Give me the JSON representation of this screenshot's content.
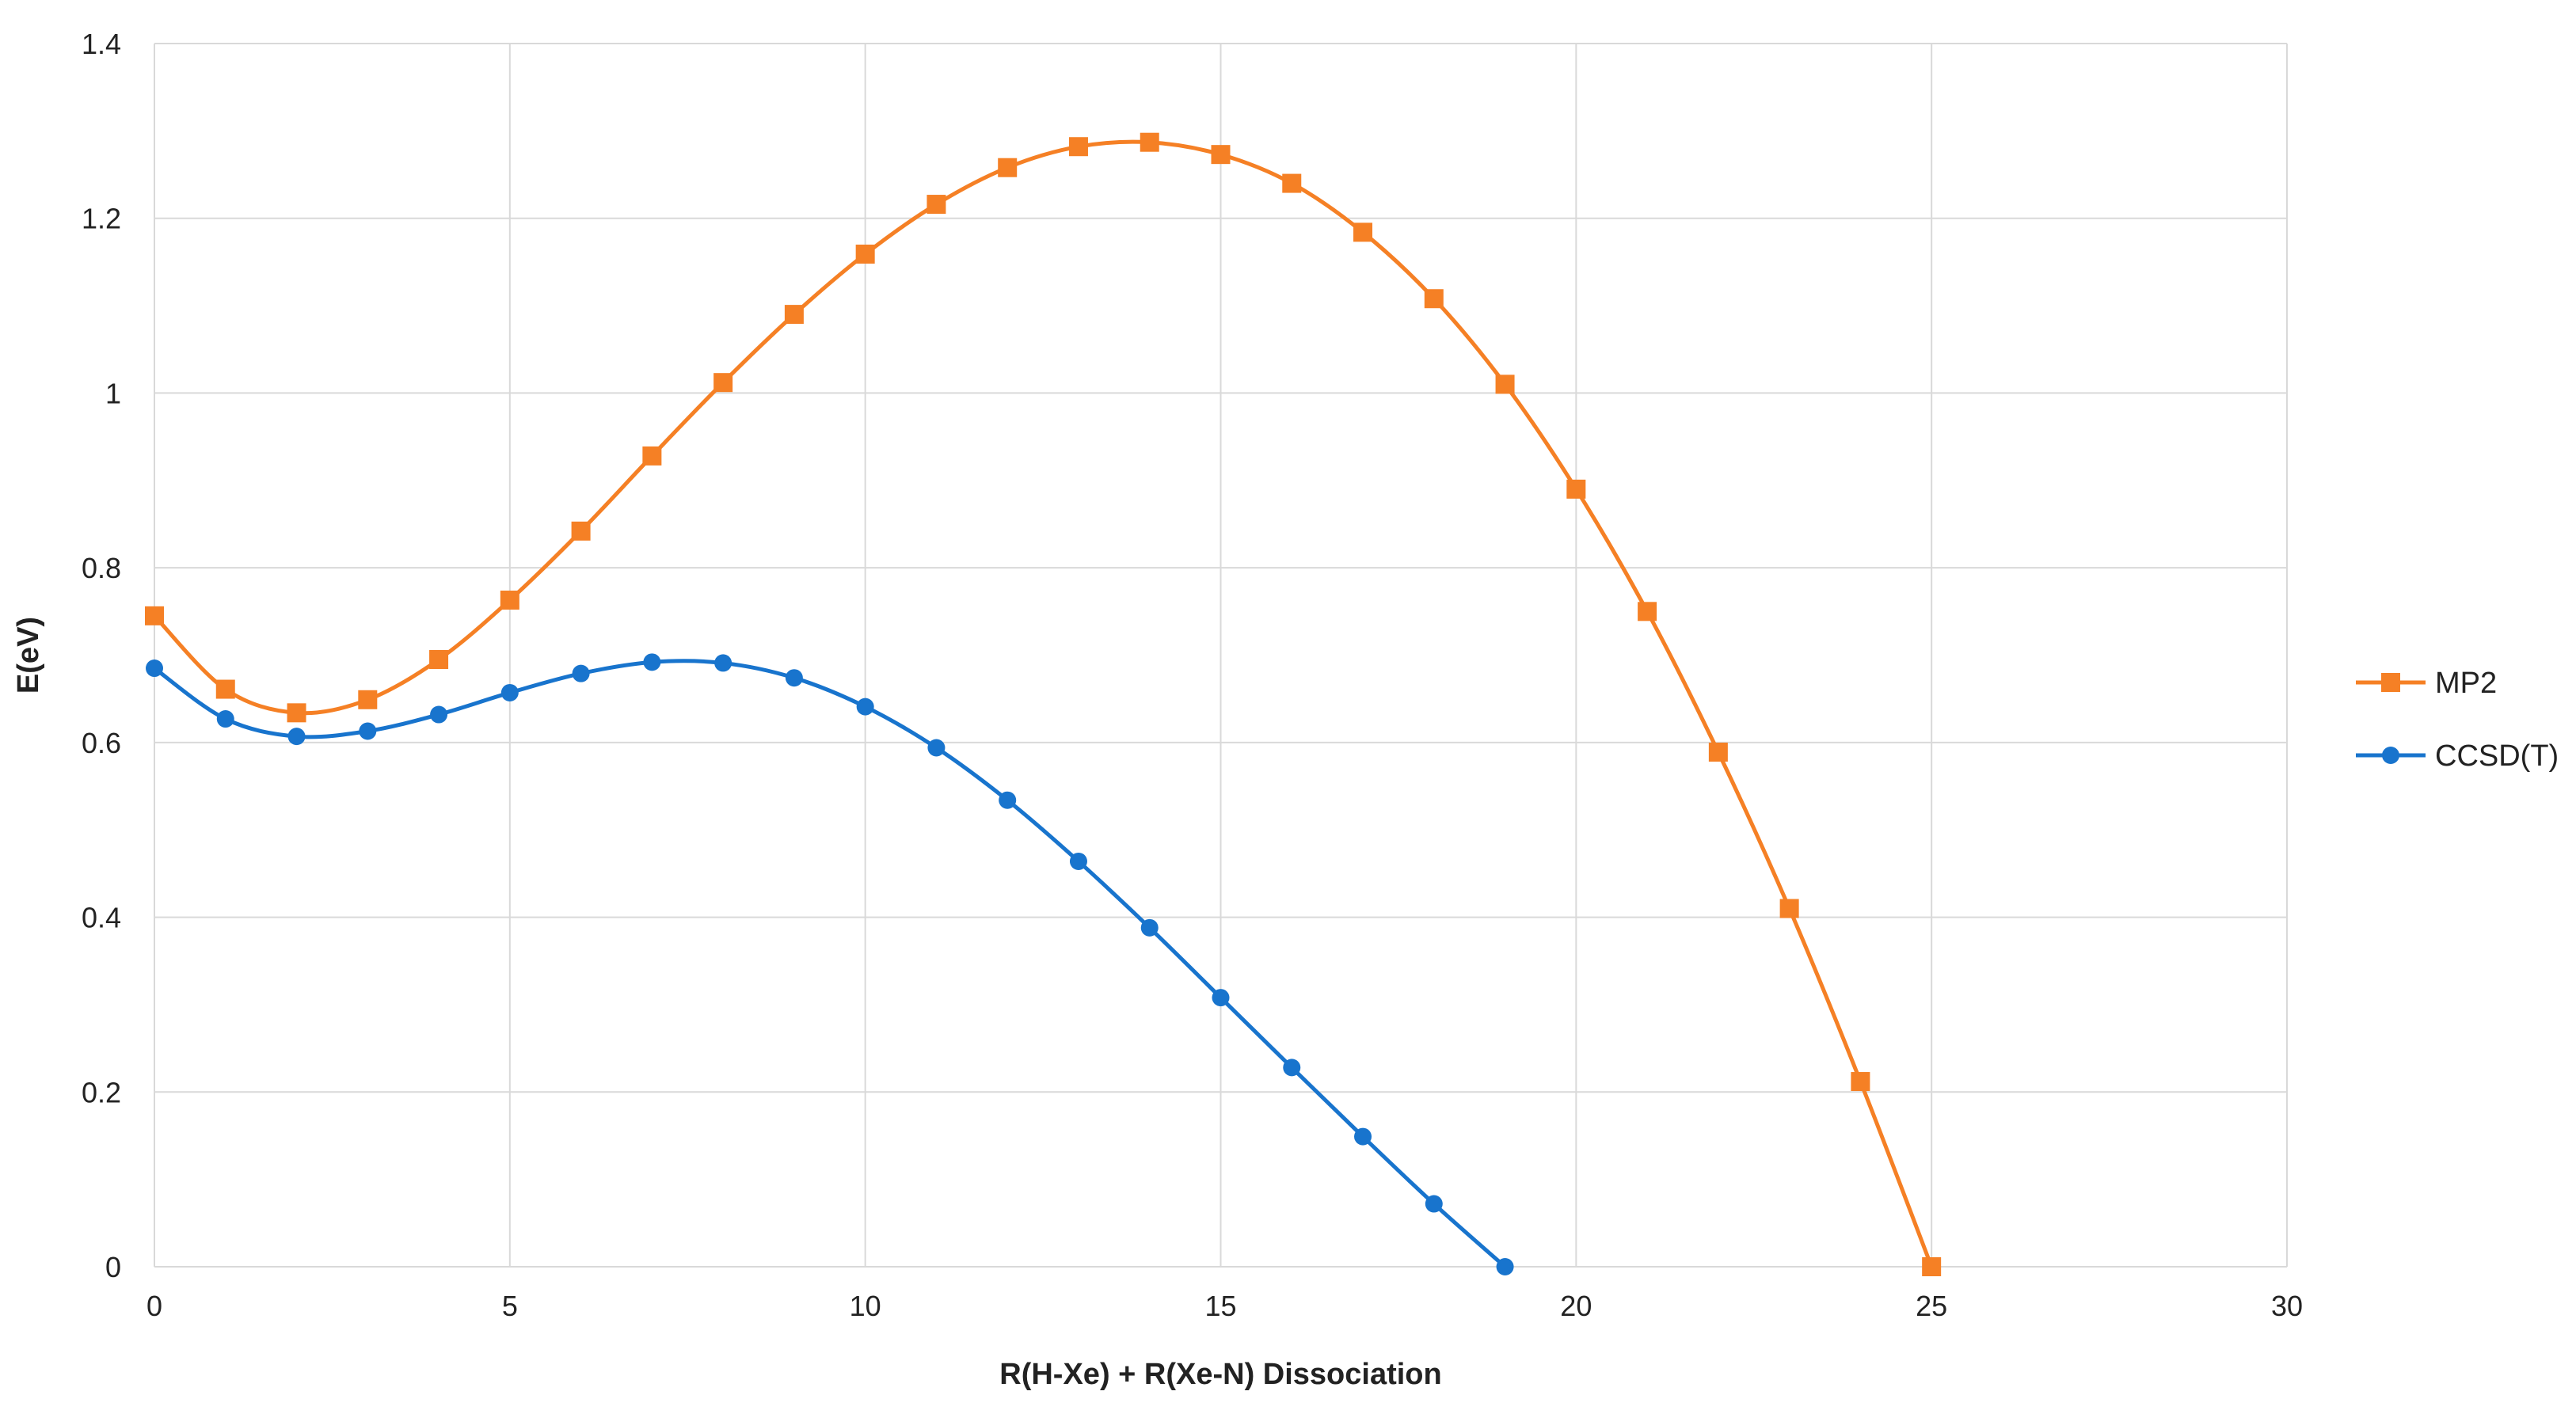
{
  "chart_data": {
    "type": "line",
    "title": "",
    "xlabel": "R(H-Xe) + R(Xe-N) Dissociation",
    "ylabel": "E(eV)",
    "xlim": [
      0,
      30
    ],
    "ylim": [
      0,
      1.4
    ],
    "xticks": [
      0,
      5,
      10,
      15,
      20,
      25,
      30
    ],
    "yticks": [
      0,
      0.2,
      0.4,
      0.6,
      0.8,
      1,
      1.2,
      1.4
    ],
    "grid": true,
    "legend_position": "right",
    "series": [
      {
        "name": "MP2",
        "color": "#F58025",
        "marker": "square",
        "x": [
          0,
          1,
          2,
          3,
          4,
          5,
          6,
          7,
          8,
          9,
          10,
          11,
          12,
          13,
          14,
          15,
          16,
          17,
          18,
          19,
          20,
          21,
          22,
          23,
          24,
          25
        ],
        "values": [
          0.745,
          0.661,
          0.634,
          0.649,
          0.695,
          0.763,
          0.842,
          0.928,
          1.012,
          1.09,
          1.159,
          1.216,
          1.258,
          1.282,
          1.287,
          1.273,
          1.24,
          1.184,
          1.108,
          1.01,
          0.89,
          0.75,
          0.589,
          0.41,
          0.212,
          0.0
        ]
      },
      {
        "name": "CCSD(T)",
        "color": "#1874CD",
        "marker": "circle",
        "x": [
          0,
          1,
          2,
          3,
          4,
          5,
          6,
          7,
          8,
          9,
          10,
          11,
          12,
          13,
          14,
          15,
          16,
          17,
          18,
          19
        ],
        "values": [
          0.685,
          0.627,
          0.607,
          0.613,
          0.632,
          0.657,
          0.679,
          0.692,
          0.691,
          0.674,
          0.641,
          0.594,
          0.534,
          0.464,
          0.388,
          0.308,
          0.228,
          0.149,
          0.072,
          0.0
        ]
      }
    ]
  }
}
